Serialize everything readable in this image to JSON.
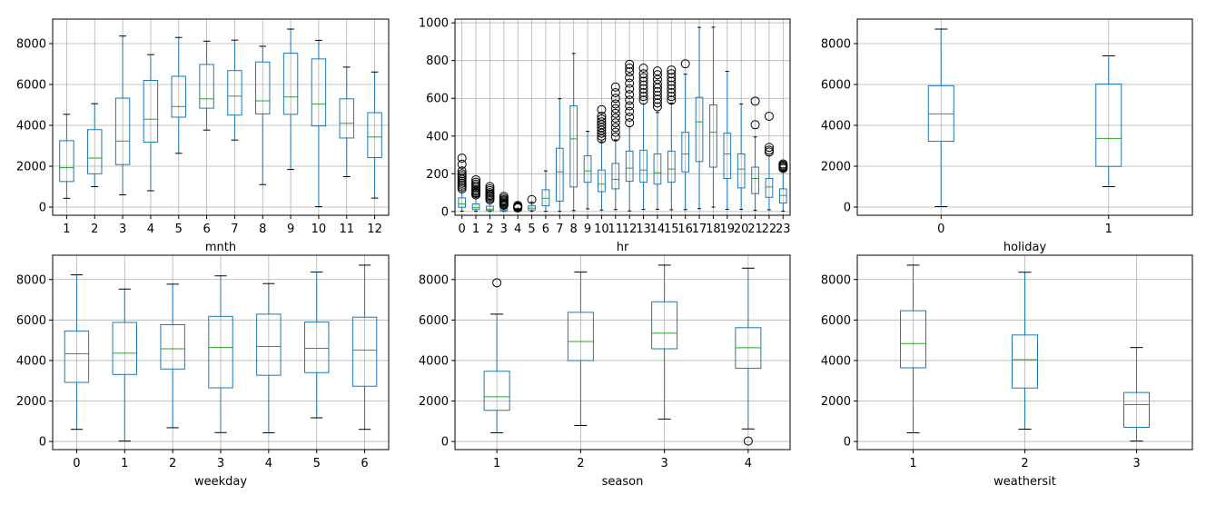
{
  "chart_data": [
    {
      "type": "boxplot",
      "xlabel": "mnth",
      "categories": [
        "1",
        "2",
        "3",
        "4",
        "5",
        "6",
        "7",
        "8",
        "9",
        "10",
        "11",
        "12"
      ],
      "ylim": [
        -400,
        9200
      ],
      "yticks": [
        0,
        2000,
        4000,
        6000,
        8000
      ],
      "grid": true,
      "boxes": [
        {
          "whislo": 430,
          "q1": 1250,
          "med": 1930,
          "q3": 3250,
          "whishi": 4540,
          "fliers": []
        },
        {
          "whislo": 1000,
          "q1": 1630,
          "med": 2400,
          "q3": 3790,
          "whishi": 5060,
          "fliers": []
        },
        {
          "whislo": 600,
          "q1": 2080,
          "med": 3230,
          "q3": 5330,
          "whishi": 8370,
          "fliers": []
        },
        {
          "whislo": 800,
          "q1": 3180,
          "med": 4300,
          "q3": 6200,
          "whishi": 7460,
          "fliers": []
        },
        {
          "whislo": 2630,
          "q1": 4400,
          "med": 4920,
          "q3": 6400,
          "whishi": 8300,
          "fliers": []
        },
        {
          "whislo": 3770,
          "q1": 4840,
          "med": 5300,
          "q3": 6980,
          "whishi": 8120,
          "fliers": []
        },
        {
          "whislo": 3280,
          "q1": 4500,
          "med": 5430,
          "q3": 6680,
          "whishi": 8170,
          "fliers": []
        },
        {
          "whislo": 1100,
          "q1": 4560,
          "med": 5200,
          "q3": 7100,
          "whishi": 7870,
          "fliers": []
        },
        {
          "whislo": 1840,
          "q1": 4540,
          "med": 5390,
          "q3": 7530,
          "whishi": 8710,
          "fliers": []
        },
        {
          "whislo": 20,
          "q1": 3970,
          "med": 5040,
          "q3": 7250,
          "whishi": 8160,
          "fliers": []
        },
        {
          "whislo": 1490,
          "q1": 3380,
          "med": 4100,
          "q3": 5300,
          "whishi": 6850,
          "fliers": []
        },
        {
          "whislo": 440,
          "q1": 2420,
          "med": 3430,
          "q3": 4620,
          "whishi": 6610,
          "fliers": []
        }
      ]
    },
    {
      "type": "boxplot",
      "xlabel": "hr",
      "categories": [
        "0",
        "1",
        "2",
        "3",
        "4",
        "5",
        "6",
        "7",
        "8",
        "9",
        "10",
        "11",
        "12",
        "13",
        "14",
        "15",
        "16",
        "17",
        "18",
        "19",
        "20",
        "21",
        "22",
        "23"
      ],
      "ylim": [
        -20,
        1020
      ],
      "yticks": [
        0,
        200,
        400,
        600,
        800,
        1000
      ],
      "grid": true,
      "boxes": [
        {
          "whislo": 2,
          "q1": 22,
          "med": 40,
          "q3": 72,
          "whishi": 110,
          "fliers": [
            120,
            130,
            140,
            150,
            160,
            170,
            180,
            190,
            200,
            215,
            250,
            283
          ]
        },
        {
          "whislo": 1,
          "q1": 10,
          "med": 20,
          "q3": 40,
          "whishi": 80,
          "fliers": [
            88,
            95,
            100,
            108,
            115,
            125,
            135,
            145,
            155,
            168
          ]
        },
        {
          "whislo": 1,
          "q1": 5,
          "med": 12,
          "q3": 28,
          "whishi": 58,
          "fliers": [
            62,
            70,
            78,
            85,
            92,
            100,
            110,
            120,
            132
          ]
        },
        {
          "whislo": 1,
          "q1": 3,
          "med": 6,
          "q3": 15,
          "whishi": 30,
          "fliers": [
            33,
            38,
            44,
            50,
            56,
            62,
            70,
            80
          ]
        },
        {
          "whislo": 1,
          "q1": 3,
          "med": 6,
          "q3": 10,
          "whishi": 17,
          "fliers": [
            19,
            22,
            25,
            28,
            32
          ]
        },
        {
          "whislo": 1,
          "q1": 8,
          "med": 18,
          "q3": 30,
          "whishi": 50,
          "fliers": [
            63
          ]
        },
        {
          "whislo": 1,
          "q1": 30,
          "med": 70,
          "q3": 115,
          "whishi": 215,
          "fliers": []
        },
        {
          "whislo": 1,
          "q1": 55,
          "med": 210,
          "q3": 335,
          "whishi": 598,
          "fliers": []
        },
        {
          "whislo": 5,
          "q1": 130,
          "med": 385,
          "q3": 560,
          "whishi": 838,
          "fliers": []
        },
        {
          "whislo": 14,
          "q1": 155,
          "med": 215,
          "q3": 295,
          "whishi": 425,
          "fliers": []
        },
        {
          "whislo": 8,
          "q1": 105,
          "med": 145,
          "q3": 220,
          "whishi": 370,
          "fliers": [
            385,
            400,
            415,
            430,
            445,
            460,
            475,
            490,
            505,
            540
          ]
        },
        {
          "whislo": 10,
          "q1": 120,
          "med": 170,
          "q3": 255,
          "whishi": 380,
          "fliers": [
            395,
            420,
            445,
            470,
            495,
            520,
            545,
            570,
            600,
            630,
            660
          ]
        },
        {
          "whislo": 3,
          "q1": 160,
          "med": 230,
          "q3": 320,
          "whishi": 450,
          "fliers": [
            470,
            500,
            530,
            560,
            590,
            620,
            650,
            680,
            710,
            740,
            760,
            780
          ]
        },
        {
          "whislo": 11,
          "q1": 155,
          "med": 220,
          "q3": 325,
          "whishi": 570,
          "fliers": [
            590,
            610,
            630,
            650,
            670,
            690,
            710,
            730,
            760
          ]
        },
        {
          "whislo": 12,
          "q1": 145,
          "med": 205,
          "q3": 305,
          "whishi": 525,
          "fliers": [
            555,
            575,
            595,
            615,
            635,
            655,
            675,
            700,
            725,
            745
          ]
        },
        {
          "whislo": 9,
          "q1": 155,
          "med": 225,
          "q3": 320,
          "whishi": 575,
          "fliers": [
            590,
            610,
            630,
            650,
            670,
            690,
            710,
            730,
            750
          ]
        },
        {
          "whislo": 10,
          "q1": 210,
          "med": 305,
          "q3": 420,
          "whishi": 728,
          "fliers": [
            783
          ]
        },
        {
          "whislo": 15,
          "q1": 265,
          "med": 475,
          "q3": 605,
          "whishi": 976,
          "fliers": []
        },
        {
          "whislo": 23,
          "q1": 235,
          "med": 420,
          "q3": 565,
          "whishi": 977,
          "fliers": []
        },
        {
          "whislo": 11,
          "q1": 175,
          "med": 305,
          "q3": 415,
          "whishi": 743,
          "fliers": []
        },
        {
          "whislo": 11,
          "q1": 125,
          "med": 225,
          "q3": 305,
          "whishi": 570,
          "fliers": []
        },
        {
          "whislo": 6,
          "q1": 95,
          "med": 175,
          "q3": 235,
          "whishi": 395,
          "fliers": [
            460,
            585
          ]
        },
        {
          "whislo": 9,
          "q1": 75,
          "med": 130,
          "q3": 175,
          "whishi": 295,
          "fliers": [
            315,
            325,
            340,
            505
          ]
        },
        {
          "whislo": 2,
          "q1": 45,
          "med": 85,
          "q3": 120,
          "whishi": 215,
          "fliers": [
            228,
            234,
            240,
            246,
            252
          ]
        }
      ]
    },
    {
      "type": "boxplot",
      "xlabel": "holiday",
      "categories": [
        "0",
        "1"
      ],
      "ylim": [
        -400,
        9200
      ],
      "yticks": [
        0,
        2000,
        4000,
        6000,
        8000
      ],
      "grid": true,
      "boxes": [
        {
          "whislo": 22,
          "q1": 3220,
          "med": 4560,
          "q3": 5940,
          "whishi": 8710,
          "fliers": []
        },
        {
          "whislo": 1000,
          "q1": 1990,
          "med": 3360,
          "q3": 6020,
          "whishi": 7400,
          "fliers": []
        }
      ]
    },
    {
      "type": "boxplot",
      "xlabel": "weekday",
      "categories": [
        "0",
        "1",
        "2",
        "3",
        "4",
        "5",
        "6"
      ],
      "ylim": [
        -400,
        9200
      ],
      "yticks": [
        0,
        2000,
        4000,
        6000,
        8000
      ],
      "grid": true,
      "boxes": [
        {
          "whislo": 600,
          "q1": 2920,
          "med": 4330,
          "q3": 5460,
          "whishi": 8230,
          "fliers": []
        },
        {
          "whislo": 22,
          "q1": 3310,
          "med": 4360,
          "q3": 5880,
          "whishi": 7530,
          "fliers": []
        },
        {
          "whislo": 680,
          "q1": 3580,
          "med": 4580,
          "q3": 5770,
          "whishi": 7770,
          "fliers": []
        },
        {
          "whislo": 440,
          "q1": 2650,
          "med": 4640,
          "q3": 6180,
          "whishi": 8180,
          "fliers": []
        },
        {
          "whislo": 430,
          "q1": 3270,
          "med": 4690,
          "q3": 6290,
          "whishi": 7800,
          "fliers": []
        },
        {
          "whislo": 1170,
          "q1": 3400,
          "med": 4600,
          "q3": 5900,
          "whishi": 8370,
          "fliers": []
        },
        {
          "whislo": 600,
          "q1": 2730,
          "med": 4520,
          "q3": 6140,
          "whishi": 8710,
          "fliers": []
        }
      ]
    },
    {
      "type": "boxplot",
      "xlabel": "season",
      "categories": [
        "1",
        "2",
        "3",
        "4"
      ],
      "ylim": [
        -400,
        9200
      ],
      "yticks": [
        0,
        2000,
        4000,
        6000,
        8000
      ],
      "grid": true,
      "boxes": [
        {
          "whislo": 430,
          "q1": 1540,
          "med": 2210,
          "q3": 3470,
          "whishi": 6290,
          "fliers": [
            7840
          ]
        },
        {
          "whislo": 790,
          "q1": 4000,
          "med": 4940,
          "q3": 6380,
          "whishi": 8370,
          "fliers": []
        },
        {
          "whislo": 1110,
          "q1": 4580,
          "med": 5350,
          "q3": 6900,
          "whishi": 8710,
          "fliers": []
        },
        {
          "whislo": 620,
          "q1": 3620,
          "med": 4630,
          "q3": 5620,
          "whishi": 8560,
          "fliers": [
            22
          ]
        }
      ]
    },
    {
      "type": "boxplot",
      "xlabel": "weathersit",
      "categories": [
        "1",
        "2",
        "3"
      ],
      "ylim": [
        -400,
        9200
      ],
      "yticks": [
        0,
        2000,
        4000,
        6000,
        8000
      ],
      "grid": true,
      "boxes": [
        {
          "whislo": 430,
          "q1": 3640,
          "med": 4840,
          "q3": 6460,
          "whishi": 8710,
          "fliers": []
        },
        {
          "whislo": 610,
          "q1": 2640,
          "med": 4040,
          "q3": 5260,
          "whishi": 8360,
          "fliers": []
        },
        {
          "whislo": 22,
          "q1": 700,
          "med": 1820,
          "q3": 2420,
          "whishi": 4640,
          "fliers": []
        }
      ]
    }
  ],
  "colors": {
    "box": "#1f77b4",
    "median": "#2ca02c",
    "whisker": "#1f77b4",
    "cap": "#000000",
    "flier": "#000000",
    "grid": "#b0b0b0"
  }
}
